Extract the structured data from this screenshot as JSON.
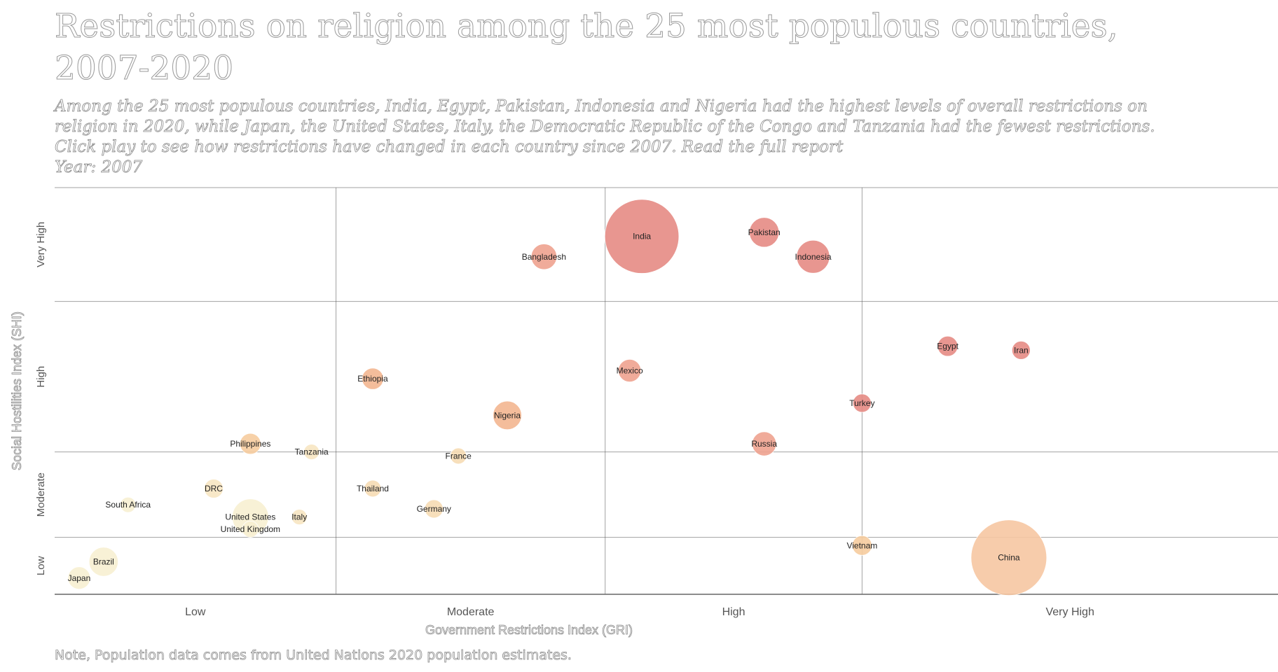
{
  "header": {
    "title_line1": "Restrictions on religion among the 25 most populous countries,",
    "title_line2": "2007-2020",
    "subtitle_line1": "Among the 25 most populous countries, India, Egypt, Pakistan, Indonesia and Nigeria had the highest levels of overall restrictions on",
    "subtitle_line2": "religion in 2020, while Japan, the United States, Italy, the Democratic Republic of the Congo and Tanzania had the fewest restrictions.",
    "subtitle_line3": "Click play to see how restrictions have changed in each country since 2007. Read the full report",
    "year_label": "Year: 2007"
  },
  "footer": {
    "note": "Note, Population data comes from United Nations 2020 population estimates."
  },
  "chart_data": {
    "type": "scatter",
    "xlabel": "Government Restrictions Index (GRI)",
    "ylabel": "Social Hostilities Index (SHI)",
    "x_categories": [
      "Low",
      "Moderate",
      "High",
      "Very High"
    ],
    "y_categories": [
      "Low",
      "Moderate",
      "High",
      "Very High"
    ],
    "xlim": [
      0,
      10
    ],
    "ylim": [
      0,
      10
    ],
    "x_boundaries": [
      2.3,
      4.5,
      6.6
    ],
    "y_boundaries": [
      1.4,
      3.5,
      7.2
    ],
    "grid": true,
    "size_encoding": "population",
    "colors": {
      "low": "#f7efd2",
      "mid": "#f3b690",
      "high": "#e07d77",
      "grid": "#555555",
      "label": "#222222"
    },
    "points": [
      {
        "name": "India",
        "x": 4.8,
        "y": 8.8,
        "size": 1380,
        "color": "#e58b84"
      },
      {
        "name": "Pakistan",
        "x": 5.8,
        "y": 8.9,
        "size": 221,
        "color": "#e58b84"
      },
      {
        "name": "Indonesia",
        "x": 6.2,
        "y": 8.3,
        "size": 274,
        "color": "#e58b84"
      },
      {
        "name": "Bangladesh",
        "x": 4.0,
        "y": 8.3,
        "size": 165,
        "color": "#eea28f"
      },
      {
        "name": "Egypt",
        "x": 7.3,
        "y": 6.1,
        "size": 102,
        "color": "#e58b84"
      },
      {
        "name": "Iran",
        "x": 7.9,
        "y": 6.0,
        "size": 84,
        "color": "#e58b84"
      },
      {
        "name": "Mexico",
        "x": 4.7,
        "y": 5.5,
        "size": 129,
        "color": "#eea28f"
      },
      {
        "name": "Ethiopia",
        "x": 2.6,
        "y": 5.3,
        "size": 115,
        "color": "#f3b690"
      },
      {
        "name": "Turkey",
        "x": 6.6,
        "y": 4.7,
        "size": 84,
        "color": "#e58b84"
      },
      {
        "name": "Nigeria",
        "x": 3.7,
        "y": 4.4,
        "size": 206,
        "color": "#f3b690"
      },
      {
        "name": "Russia",
        "x": 5.8,
        "y": 3.7,
        "size": 146,
        "color": "#eea28f"
      },
      {
        "name": "Philippines",
        "x": 1.6,
        "y": 3.7,
        "size": 110,
        "color": "#f6cc9e"
      },
      {
        "name": "Tanzania",
        "x": 2.1,
        "y": 3.5,
        "size": 60,
        "color": "#f7e6c2"
      },
      {
        "name": "France",
        "x": 3.3,
        "y": 3.4,
        "size": 65,
        "color": "#f6dcb4"
      },
      {
        "name": "DRC",
        "x": 1.3,
        "y": 2.6,
        "size": 90,
        "color": "#f7e6c2"
      },
      {
        "name": "Thailand",
        "x": 2.6,
        "y": 2.6,
        "size": 70,
        "color": "#f6dcb4"
      },
      {
        "name": "South Africa",
        "x": 0.6,
        "y": 2.2,
        "size": 59,
        "color": "#f7efd2"
      },
      {
        "name": "Germany",
        "x": 3.1,
        "y": 2.1,
        "size": 84,
        "color": "#f6dcb4"
      },
      {
        "name": "United States",
        "x": 1.6,
        "y": 1.9,
        "size": 331,
        "color": "#f7efd2"
      },
      {
        "name": "Italy",
        "x": 2.0,
        "y": 1.9,
        "size": 60,
        "color": "#f7e6c2"
      },
      {
        "name": "United Kingdom",
        "x": 1.6,
        "y": 1.6,
        "size": 67,
        "color": "#f7efd2"
      },
      {
        "name": "Vietnam",
        "x": 6.6,
        "y": 1.2,
        "size": 97,
        "color": "#f6cc9e"
      },
      {
        "name": "China",
        "x": 7.8,
        "y": 0.9,
        "size": 1440,
        "color": "#f6c6a2"
      },
      {
        "name": "Brazil",
        "x": 0.4,
        "y": 0.8,
        "size": 213,
        "color": "#f7efd2"
      },
      {
        "name": "Japan",
        "x": 0.2,
        "y": 0.4,
        "size": 126,
        "color": "#f7efd2"
      }
    ]
  }
}
